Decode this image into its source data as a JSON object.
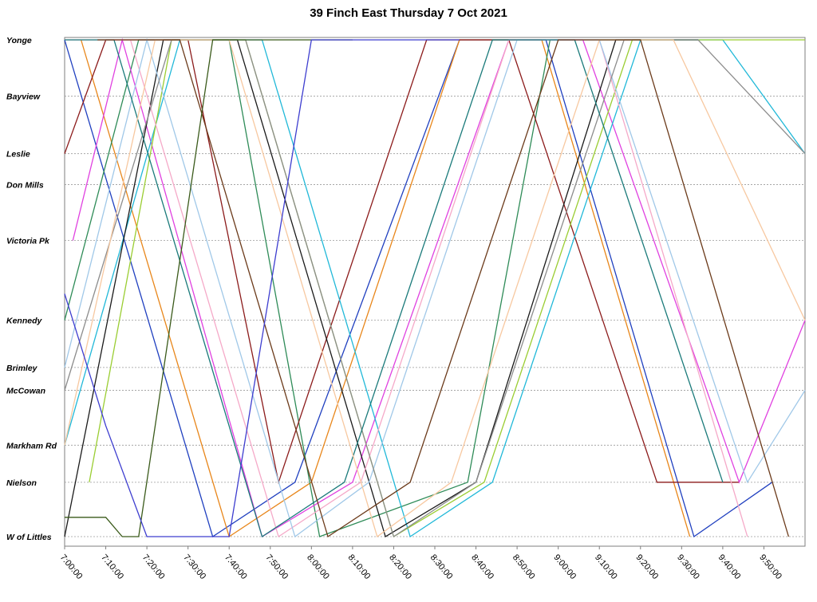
{
  "chart_data": {
    "type": "line",
    "title": "39 Finch East Thursday 7 Oct 2021",
    "xlabel": "",
    "ylabel": "",
    "grid": true,
    "x_ticks": [
      "7:00:00",
      "7:10:00",
      "7:20:00",
      "7:30:00",
      "7:40:00",
      "7:50:00",
      "8:00:00",
      "8:10:00",
      "8:20:00",
      "8:30:00",
      "8:40:00",
      "8:50:00",
      "9:00:00",
      "9:10:00",
      "9:20:00",
      "9:30:00",
      "9:40:00",
      "9:50:00"
    ],
    "xlim": [
      "7:00:00",
      "10:00:00"
    ],
    "stops": [
      {
        "name": "Yonge",
        "pos": 0.0
      },
      {
        "name": "Bayview",
        "pos": 1.11
      },
      {
        "name": "Leslie",
        "pos": 2.24
      },
      {
        "name": "Don Mills",
        "pos": 2.85
      },
      {
        "name": "Victoria Pk",
        "pos": 3.95
      },
      {
        "name": "Kennedy",
        "pos": 5.52
      },
      {
        "name": "Brimley",
        "pos": 6.45
      },
      {
        "name": "McCowan",
        "pos": 6.9
      },
      {
        "name": "Markham Rd",
        "pos": 7.98
      },
      {
        "name": "Nielson",
        "pos": 8.71
      },
      {
        "name": "W of Littles",
        "pos": 9.78
      }
    ],
    "series": [
      {
        "color": "#1f3fbf",
        "x": [
          "7:00:00",
          "7:36:00",
          "7:56:00",
          "8:36:00",
          "8:57:00",
          "9:33:00",
          "9:52:00"
        ],
        "y": [
          0,
          9.78,
          8.71,
          0,
          0,
          9.78,
          8.71
        ]
      },
      {
        "color": "#e8861a",
        "x": [
          "7:04:00",
          "7:40:00",
          "8:00:00",
          "8:36:00",
          "8:56:00",
          "9:32:00"
        ],
        "y": [
          0,
          9.78,
          8.71,
          0,
          0,
          9.78
        ]
      },
      {
        "color": "#2e8b57",
        "x": [
          "7:00:00",
          "7:18:00",
          "7:40:00",
          "8:02:00",
          "8:38:00",
          "8:58:00",
          "9:34:00"
        ],
        "y": [
          5.52,
          0,
          0,
          9.78,
          8.71,
          0,
          0
        ]
      },
      {
        "color": "#8b1a1a",
        "x": [
          "7:00:00",
          "7:10:00",
          "7:30:00",
          "7:52:00",
          "8:28:00",
          "8:48:00",
          "9:24:00",
          "9:44:00"
        ],
        "y": [
          2.24,
          0,
          0,
          8.71,
          0,
          0,
          8.71,
          8.71
        ]
      },
      {
        "color": "#e040e0",
        "x": [
          "7:02:00",
          "7:14:00",
          "7:48:00",
          "8:10:00",
          "8:48:00",
          "9:06:00",
          "9:44:00",
          "10:00:00"
        ],
        "y": [
          3.95,
          0,
          9.78,
          8.71,
          0,
          0,
          8.71,
          5.52
        ]
      },
      {
        "color": "#20b8d8",
        "x": [
          "7:00:00",
          "7:28:00",
          "7:48:00",
          "8:24:00",
          "8:44:00",
          "9:20:00",
          "9:40:00",
          "10:00:00"
        ],
        "y": [
          7.98,
          0,
          0,
          9.78,
          8.71,
          0,
          0,
          2.24
        ]
      },
      {
        "color": "#9acd32",
        "x": [
          "7:06:00",
          "7:26:00",
          "7:44:00",
          "8:20:00",
          "8:42:00",
          "9:18:00",
          "9:36:00",
          "10:00:00"
        ],
        "y": [
          8.71,
          0,
          0,
          9.78,
          8.71,
          0,
          0,
          0
        ]
      },
      {
        "color": "#1a1a1a",
        "x": [
          "7:00:00",
          "7:24:00",
          "7:42:00",
          "8:18:00",
          "8:40:00",
          "9:14:00",
          "9:34:00"
        ],
        "y": [
          9.78,
          0,
          0,
          9.78,
          8.71,
          0,
          0
        ]
      },
      {
        "color": "#f5a9c8",
        "x": [
          "7:00:00",
          "7:16:00",
          "7:52:00",
          "8:12:00",
          "8:48:00",
          "9:10:00",
          "9:46:00"
        ],
        "y": [
          0,
          0,
          9.78,
          8.71,
          0,
          0,
          9.78
        ]
      },
      {
        "color": "#a0c8e8",
        "x": [
          "7:00:00",
          "7:20:00",
          "7:56:00",
          "8:14:00",
          "8:50:00",
          "9:10:00",
          "9:46:00",
          "10:00:00"
        ],
        "y": [
          6.45,
          0,
          9.78,
          8.71,
          0,
          0,
          8.71,
          6.9
        ]
      },
      {
        "color": "#8c8c8c",
        "x": [
          "7:00:00",
          "7:26:00",
          "7:44:00",
          "8:20:00",
          "8:40:00",
          "9:16:00",
          "9:34:00",
          "10:00:00"
        ],
        "y": [
          6.9,
          0,
          0,
          9.78,
          8.71,
          0,
          0,
          2.24
        ]
      },
      {
        "color": "#1a7a7a",
        "x": [
          "7:00:00",
          "7:12:00",
          "7:48:00",
          "8:08:00",
          "8:44:00",
          "9:04:00",
          "9:40:00"
        ],
        "y": [
          0,
          0,
          9.78,
          8.71,
          0,
          0,
          8.71
        ]
      },
      {
        "color": "#f7c8a0",
        "x": [
          "7:00:00",
          "7:22:00",
          "7:40:00",
          "8:16:00",
          "8:34:00",
          "9:10:00",
          "9:28:00",
          "10:00:00"
        ],
        "y": [
          7.98,
          0,
          0,
          9.78,
          8.71,
          0,
          0,
          5.52
        ]
      },
      {
        "color": "#6b3a1a",
        "x": [
          "7:08:00",
          "7:28:00",
          "8:04:00",
          "8:24:00",
          "9:00:00",
          "9:20:00",
          "9:56:00"
        ],
        "y": [
          0,
          0,
          9.78,
          8.71,
          0,
          0,
          9.78
        ]
      },
      {
        "color": "#3a5a1a",
        "x": [
          "7:00:00",
          "7:10:00",
          "7:14:00",
          "7:18:00",
          "7:36:00",
          "8:10:00"
        ],
        "y": [
          9.4,
          9.4,
          9.78,
          9.78,
          0,
          0
        ]
      },
      {
        "color": "#3d3dcf",
        "x": [
          "7:00:00",
          "7:10:00",
          "7:20:00",
          "7:40:00",
          "8:00:00",
          "8:36:00"
        ],
        "y": [
          5.0,
          7.6,
          9.78,
          9.78,
          0,
          0
        ]
      }
    ]
  }
}
